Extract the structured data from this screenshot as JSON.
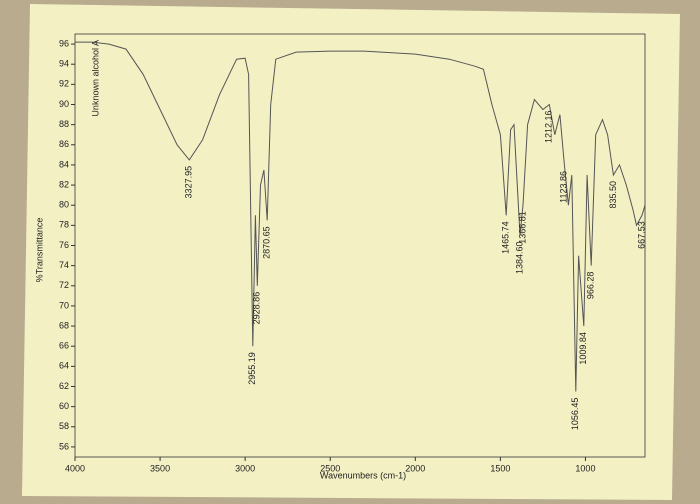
{
  "chart_data": {
    "type": "line",
    "title": "Unknown alcohol A",
    "xlabel": "Wavenumbers (cm-1)",
    "ylabel": "%Transmittance",
    "color": "#555555",
    "x": [
      4000,
      3900,
      3800,
      3700,
      3600,
      3500,
      3400,
      3327.95,
      3250,
      3150,
      3050,
      3000,
      2980,
      2955.19,
      2940,
      2928.86,
      2910,
      2890,
      2870.65,
      2850,
      2820,
      2700,
      2500,
      2300,
      2200,
      2000,
      1800,
      1650,
      1600,
      1550,
      1500,
      1465.74,
      1440,
      1420,
      1384.6,
      1366.81,
      1340,
      1300,
      1250,
      1212.16,
      1180,
      1150,
      1123.86,
      1100,
      1080,
      1056.45,
      1040,
      1009.84,
      990,
      966.28,
      940,
      900,
      870,
      835.5,
      800,
      760,
      720,
      700,
      667.53,
      650
    ],
    "values": [
      96.2,
      96.2,
      96,
      95.5,
      93,
      89.5,
      86,
      84.5,
      86.5,
      91,
      94.5,
      94.6,
      93,
      66,
      79,
      72,
      82,
      83.5,
      78.5,
      90,
      94.5,
      95.2,
      95.3,
      95.3,
      95.2,
      95,
      94.5,
      93.8,
      93.5,
      90,
      87,
      79,
      87.5,
      88,
      77,
      80,
      88,
      90.5,
      89.5,
      90,
      87,
      89,
      84,
      80,
      83,
      61.5,
      75,
      68,
      83,
      74,
      87,
      88.5,
      87,
      83,
      84,
      82,
      79.5,
      78,
      79,
      80
    ],
    "annotations": [
      {
        "text": "3327.95",
        "x": 3327.95,
        "y": 84.5
      },
      {
        "text": "2955.19",
        "x": 2955.19,
        "y": 66
      },
      {
        "text": "2928.86",
        "x": 2928.86,
        "y": 72
      },
      {
        "text": "2870.65",
        "x": 2870.65,
        "y": 78.5
      },
      {
        "text": "1465.74",
        "x": 1465.74,
        "y": 79
      },
      {
        "text": "1384.60",
        "x": 1384.6,
        "y": 77
      },
      {
        "text": "1366.81",
        "x": 1366.81,
        "y": 80
      },
      {
        "text": "1212.16",
        "x": 1212.16,
        "y": 90
      },
      {
        "text": "1123.86",
        "x": 1123.86,
        "y": 84
      },
      {
        "text": "1056.45",
        "x": 1056.45,
        "y": 61.5
      },
      {
        "text": "1009.84",
        "x": 1009.84,
        "y": 68
      },
      {
        "text": "966.28",
        "x": 966.28,
        "y": 74
      },
      {
        "text": "835.50",
        "x": 835.5,
        "y": 83
      },
      {
        "text": "667.53",
        "x": 667.53,
        "y": 79
      }
    ],
    "xlim": [
      4000,
      650
    ],
    "ylim": [
      55,
      97
    ],
    "xticks": [
      4000,
      3500,
      3000,
      2500,
      2000,
      1500,
      1000
    ],
    "yticks": [
      56,
      58,
      60,
      62,
      64,
      66,
      68,
      70,
      72,
      74,
      76,
      78,
      80,
      82,
      84,
      86,
      88,
      90,
      92,
      94,
      96
    ]
  }
}
